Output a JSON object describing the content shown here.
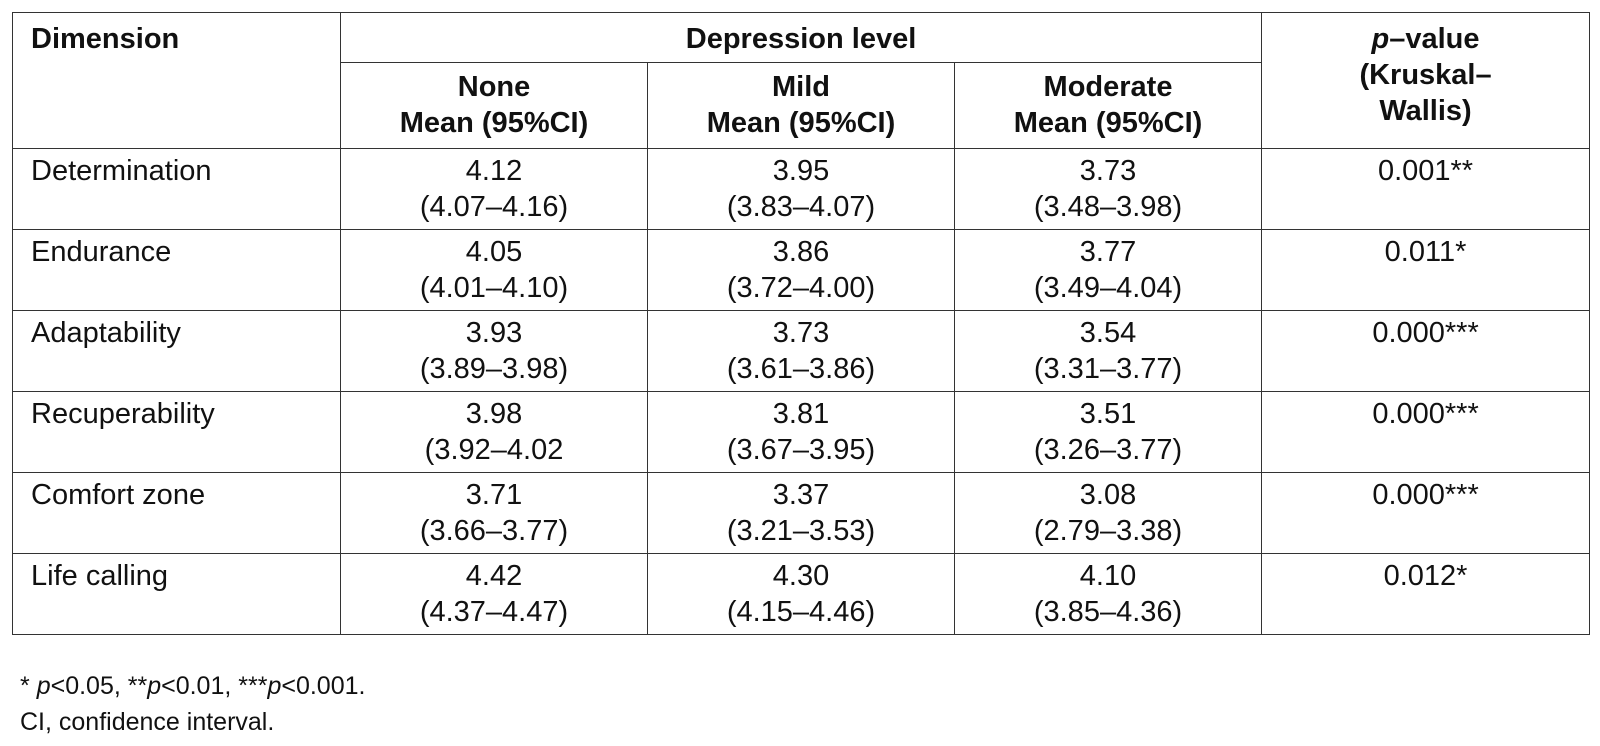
{
  "table": {
    "headers": {
      "dimension": "Dimension",
      "depression_level": "Depression level",
      "p_value": {
        "italic_part": "p",
        "rest_line1": "–value",
        "line2": "(Kruskal–",
        "line3": "Wallis)"
      },
      "levels": [
        {
          "name": "None",
          "stat": "Mean (95%CI)"
        },
        {
          "name": "Mild",
          "stat": "Mean (95%CI)"
        },
        {
          "name": "Moderate",
          "stat": "Mean (95%CI)"
        }
      ]
    },
    "rows": [
      {
        "dimension": "Determination",
        "values": [
          {
            "mean": "4.12",
            "ci": "(4.07–4.16)"
          },
          {
            "mean": "3.95",
            "ci": "(3.83–4.07)"
          },
          {
            "mean": "3.73",
            "ci": "(3.48–3.98)"
          }
        ],
        "p_value": "0.001**"
      },
      {
        "dimension": "Endurance",
        "values": [
          {
            "mean": "4.05",
            "ci": "(4.01–4.10)"
          },
          {
            "mean": "3.86",
            "ci": "(3.72–4.00)"
          },
          {
            "mean": "3.77",
            "ci": "(3.49–4.04)"
          }
        ],
        "p_value": "0.011*"
      },
      {
        "dimension": "Adaptability",
        "values": [
          {
            "mean": "3.93",
            "ci": "(3.89–3.98)"
          },
          {
            "mean": "3.73",
            "ci": "(3.61–3.86)"
          },
          {
            "mean": "3.54",
            "ci": "(3.31–3.77)"
          }
        ],
        "p_value": "0.000***"
      },
      {
        "dimension": "Recuperability",
        "values": [
          {
            "mean": "3.98",
            "ci": "(3.92–4.02"
          },
          {
            "mean": "3.81",
            "ci": "(3.67–3.95)"
          },
          {
            "mean": "3.51",
            "ci": "(3.26–3.77)"
          }
        ],
        "p_value": "0.000***"
      },
      {
        "dimension": "Comfort zone",
        "values": [
          {
            "mean": "3.71",
            "ci": "(3.66–3.77)"
          },
          {
            "mean": "3.37",
            "ci": "(3.21–3.53)"
          },
          {
            "mean": "3.08",
            "ci": "(2.79–3.38)"
          }
        ],
        "p_value": "0.000***"
      },
      {
        "dimension": "Life calling",
        "values": [
          {
            "mean": "4.42",
            "ci": "(4.37–4.47)"
          },
          {
            "mean": "4.30",
            "ci": "(4.15–4.46)"
          },
          {
            "mean": "4.10",
            "ci": "(3.85–4.36)"
          }
        ],
        "p_value": "0.012*"
      }
    ]
  },
  "footnotes": {
    "significance": {
      "s1": "* ",
      "p1": "p",
      "s2": "<0.05, **",
      "p2": "p",
      "s3": "<0.01, ***",
      "p3": "p",
      "s4": "<0.001."
    },
    "ci_note": "CI, confidence interval."
  }
}
